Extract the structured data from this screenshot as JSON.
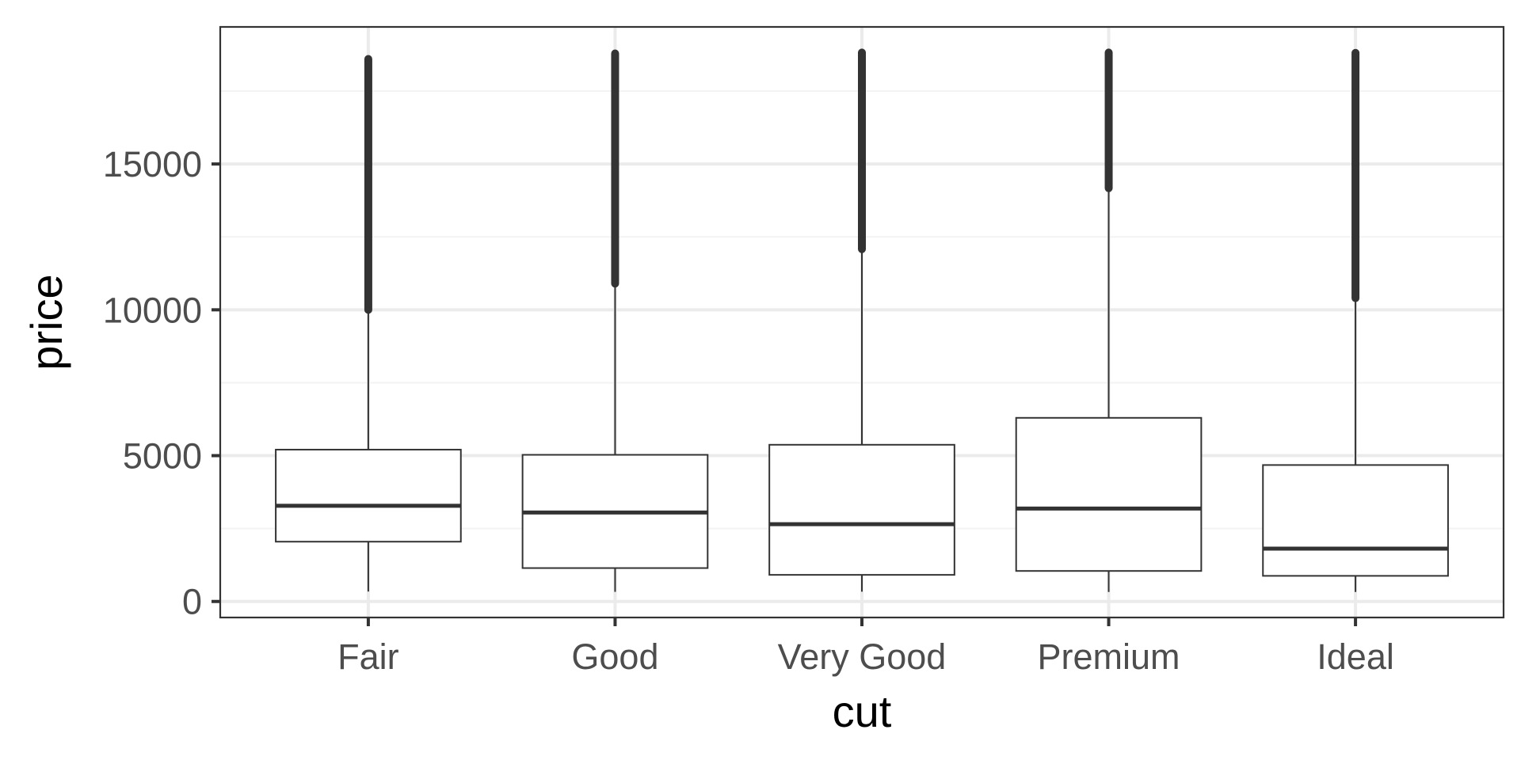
{
  "chart_data": {
    "type": "boxplot",
    "title": "",
    "xlabel": "cut",
    "ylabel": "price",
    "ylim": [
      -550,
      19700
    ],
    "yticks": [
      0,
      5000,
      10000,
      15000
    ],
    "ytick_labels": [
      "0",
      "5000",
      "10000",
      "15000"
    ],
    "yminor": [
      2500,
      7500,
      12500,
      17500
    ],
    "grid": true,
    "categories": [
      "Fair",
      "Good",
      "Very Good",
      "Premium",
      "Ideal"
    ],
    "series": [
      {
        "name": "Fair",
        "lower_whisker": 340,
        "q1": 2050,
        "median": 3282,
        "q3": 5206,
        "upper_whisker": 9980,
        "outliers_min": 10000,
        "outliers_max": 18600
      },
      {
        "name": "Good",
        "lower_whisker": 330,
        "q1": 1145,
        "median": 3050,
        "q3": 5028,
        "upper_whisker": 10880,
        "outliers_min": 10900,
        "outliers_max": 18790
      },
      {
        "name": "Very Good",
        "lower_whisker": 335,
        "q1": 912,
        "median": 2648,
        "q3": 5373,
        "upper_whisker": 12060,
        "outliers_min": 12080,
        "outliers_max": 18820
      },
      {
        "name": "Premium",
        "lower_whisker": 325,
        "q1": 1046,
        "median": 3185,
        "q3": 6296,
        "upper_whisker": 14150,
        "outliers_min": 14170,
        "outliers_max": 18820
      },
      {
        "name": "Ideal",
        "lower_whisker": 325,
        "q1": 878,
        "median": 1810,
        "q3": 4678,
        "upper_whisker": 10380,
        "outliers_min": 10400,
        "outliers_max": 18810
      }
    ],
    "colors": {
      "box_stroke": "#333333",
      "grid_major": "#ebebeb",
      "grid_minor": "#f3f3f3",
      "panel_border": "#333333",
      "background": "#ffffff"
    }
  }
}
